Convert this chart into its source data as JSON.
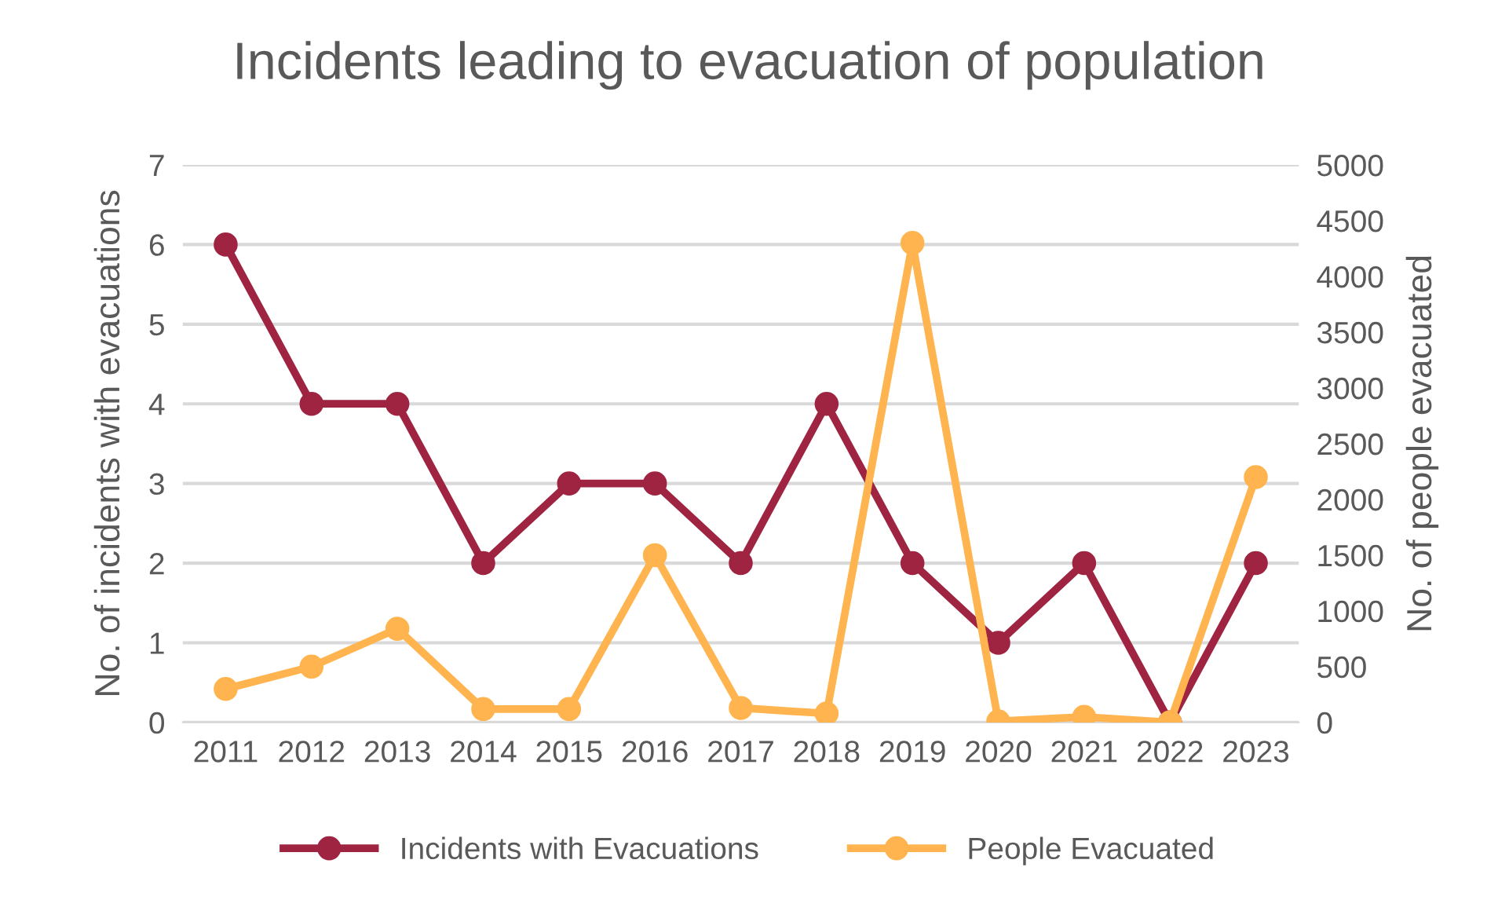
{
  "chart_data": {
    "type": "line",
    "title": "Incidents leading to evacuation of population",
    "ylabel": "No. of incidents with evacuations",
    "y2label": "No. of people evacuated",
    "categories": [
      "2011",
      "2012",
      "2013",
      "2014",
      "2015",
      "2016",
      "2017",
      "2018",
      "2019",
      "2020",
      "2021",
      "2022",
      "2023"
    ],
    "series": [
      {
        "name": "Incidents with Evacuations",
        "color": "#9e2441",
        "values": [
          6,
          4,
          4,
          2,
          3,
          3,
          2,
          4,
          2,
          1,
          2,
          0,
          2
        ]
      },
      {
        "name": "People Evacuated",
        "color": "#ffb44f",
        "axis": "y2",
        "values": [
          300,
          500,
          840,
          120,
          120,
          1500,
          130,
          80,
          4300,
          10,
          50,
          0,
          2200
        ]
      }
    ],
    "ylim": [
      0,
      7
    ],
    "yticks": [
      0,
      1,
      2,
      3,
      4,
      5,
      6,
      7
    ],
    "y2lim": [
      0,
      5000
    ],
    "y2ticks": [
      0,
      500,
      1000,
      1500,
      2000,
      2500,
      3000,
      3500,
      4000,
      4500,
      5000
    ],
    "grid": "y",
    "legend": "bottom",
    "marker": "circle",
    "line_style": "solid"
  }
}
